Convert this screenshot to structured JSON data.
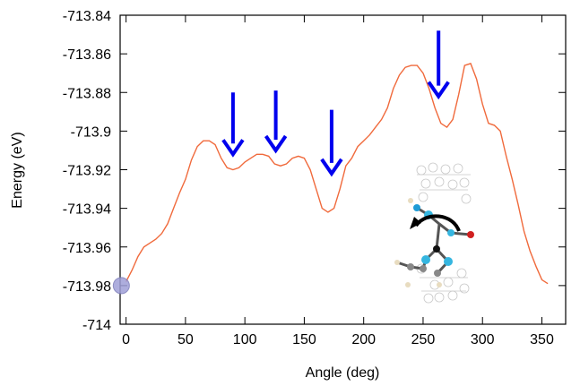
{
  "chart_data": {
    "type": "line",
    "title": "",
    "xlabel": "Angle (deg)",
    "ylabel": "Energy (eV)",
    "xlim": [
      -5,
      370
    ],
    "ylim": [
      -714,
      -713.84
    ],
    "xticks": [
      0,
      50,
      100,
      150,
      200,
      250,
      300,
      350
    ],
    "xtick_labels": [
      "0",
      "50",
      "100",
      "150",
      "200",
      "250",
      "300",
      "350"
    ],
    "yticks": [
      -714,
      -713.98,
      -713.96,
      -713.94,
      -713.92,
      -713.9,
      -713.88,
      -713.86,
      -713.84
    ],
    "ytick_labels": [
      "-714",
      "-713.98",
      "-713.96",
      "-713.94",
      "-713.92",
      "-713.9",
      "-713.88",
      "-713.86",
      "-713.84"
    ],
    "grid": false,
    "legend": "none",
    "series": [
      {
        "color": "#f06a3c",
        "points": [
          [
            0,
            -713.978
          ],
          [
            5,
            -713.972
          ],
          [
            10,
            -713.965
          ],
          [
            15,
            -713.96
          ],
          [
            20,
            -713.958
          ],
          [
            25,
            -713.956
          ],
          [
            30,
            -713.953
          ],
          [
            35,
            -713.948
          ],
          [
            40,
            -713.94
          ],
          [
            45,
            -713.932
          ],
          [
            50,
            -713.925
          ],
          [
            55,
            -713.915
          ],
          [
            60,
            -713.908
          ],
          [
            65,
            -713.905
          ],
          [
            70,
            -713.905
          ],
          [
            75,
            -713.907
          ],
          [
            80,
            -713.914
          ],
          [
            85,
            -713.919
          ],
          [
            90,
            -713.92
          ],
          [
            95,
            -713.919
          ],
          [
            100,
            -713.916
          ],
          [
            105,
            -713.914
          ],
          [
            110,
            -713.912
          ],
          [
            115,
            -713.912
          ],
          [
            120,
            -713.913
          ],
          [
            125,
            -713.917
          ],
          [
            130,
            -713.918
          ],
          [
            135,
            -713.917
          ],
          [
            140,
            -713.914
          ],
          [
            145,
            -713.913
          ],
          [
            150,
            -713.914
          ],
          [
            155,
            -713.92
          ],
          [
            160,
            -713.93
          ],
          [
            165,
            -713.94
          ],
          [
            170,
            -713.942
          ],
          [
            175,
            -713.94
          ],
          [
            180,
            -713.93
          ],
          [
            185,
            -713.918
          ],
          [
            190,
            -713.914
          ],
          [
            195,
            -713.908
          ],
          [
            200,
            -713.905
          ],
          [
            205,
            -713.902
          ],
          [
            210,
            -713.898
          ],
          [
            215,
            -713.894
          ],
          [
            220,
            -713.888
          ],
          [
            225,
            -713.878
          ],
          [
            230,
            -713.871
          ],
          [
            235,
            -713.867
          ],
          [
            240,
            -713.866
          ],
          [
            245,
            -713.866
          ],
          [
            250,
            -713.87
          ],
          [
            255,
            -713.878
          ],
          [
            260,
            -713.888
          ],
          [
            265,
            -713.896
          ],
          [
            270,
            -713.898
          ],
          [
            275,
            -713.894
          ],
          [
            280,
            -713.881
          ],
          [
            285,
            -713.866
          ],
          [
            290,
            -713.865
          ],
          [
            295,
            -713.873
          ],
          [
            300,
            -713.886
          ],
          [
            305,
            -713.896
          ],
          [
            310,
            -713.897
          ],
          [
            315,
            -713.9
          ],
          [
            320,
            -713.913
          ],
          [
            325,
            -713.925
          ],
          [
            330,
            -713.938
          ],
          [
            335,
            -713.952
          ],
          [
            340,
            -713.962
          ],
          [
            345,
            -713.97
          ],
          [
            350,
            -713.977
          ],
          [
            355,
            -713.979
          ]
        ]
      }
    ],
    "annotations": [
      {
        "type": "arrow",
        "color": "#0000ee",
        "x": 90,
        "y_top": -713.88,
        "y_bottom": -713.912
      },
      {
        "type": "arrow",
        "color": "#0000ee",
        "x": 126,
        "y_top": -713.879,
        "y_bottom": -713.91
      },
      {
        "type": "arrow",
        "color": "#0000ee",
        "x": 173,
        "y_top": -713.889,
        "y_bottom": -713.922
      },
      {
        "type": "arrow",
        "color": "#0000ee",
        "x": 263,
        "y_top": -713.848,
        "y_bottom": -713.882
      },
      {
        "type": "marker",
        "color": "#9f9fd8",
        "x": -4,
        "y": -713.98
      }
    ],
    "inset": {
      "description_icon": "molecule-rotation-icon"
    }
  }
}
